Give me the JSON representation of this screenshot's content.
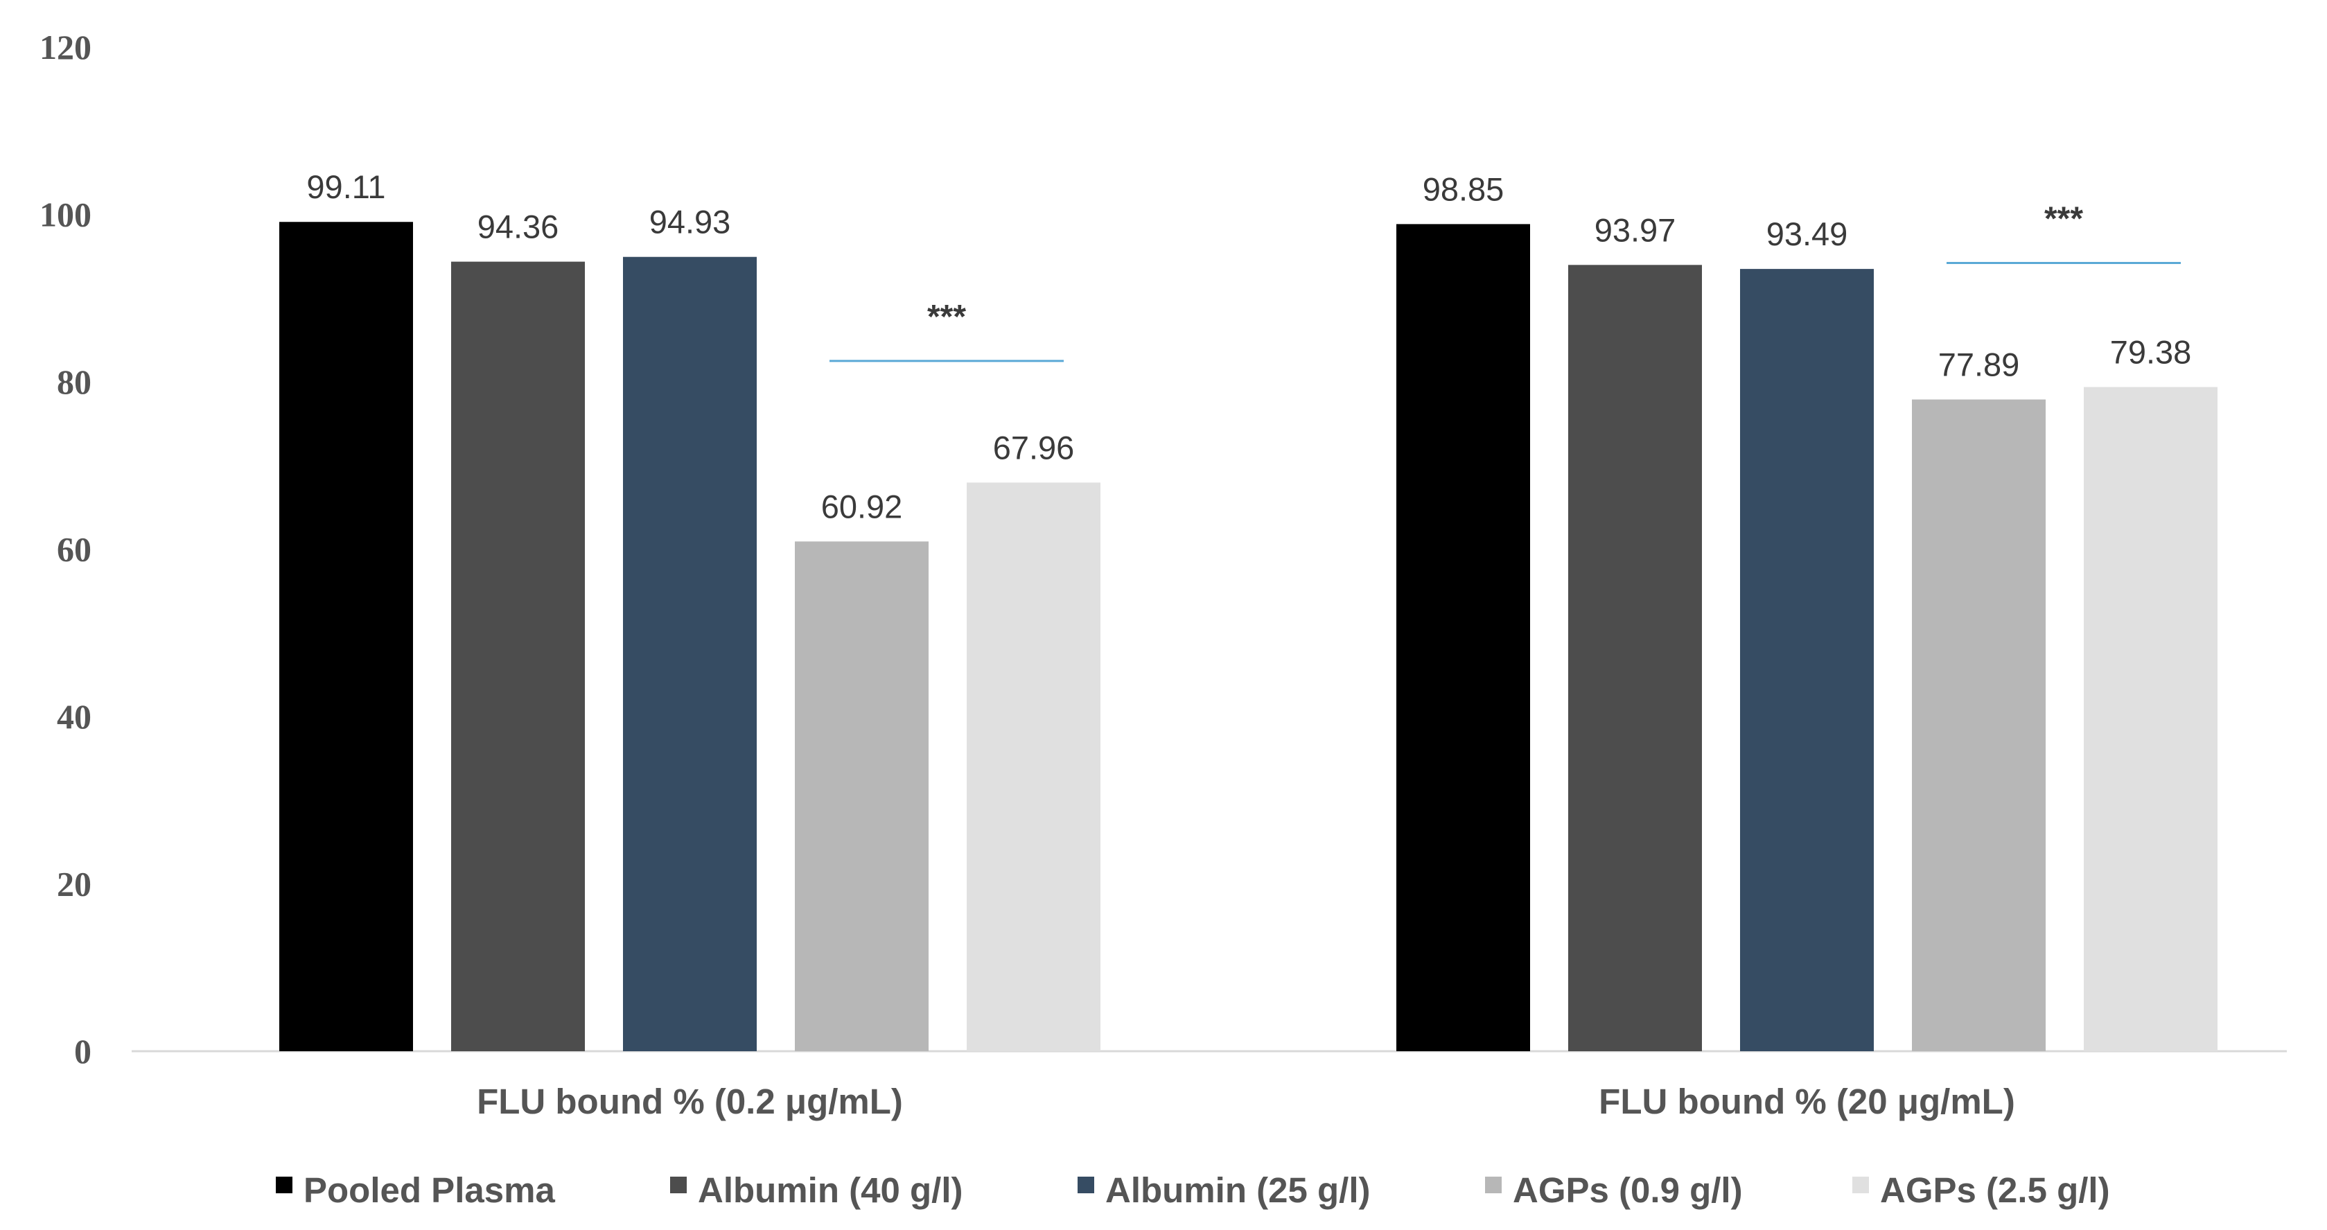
{
  "chart_data": {
    "type": "bar",
    "title": "",
    "xlabel": "",
    "ylabel": "",
    "ylim": [
      0,
      120
    ],
    "yticks": [
      0,
      20,
      40,
      60,
      80,
      100,
      120
    ],
    "ytick_labels": [
      "0",
      "20",
      "40",
      "60",
      "80",
      "100",
      "120"
    ],
    "categories": [
      "FLU bound % (0.2 μg/mL)",
      "FLU bound % (20 μg/mL)"
    ],
    "series": [
      {
        "name": "Pooled Plasma",
        "color": "#000000",
        "values": [
          99.11,
          98.85
        ],
        "labels": [
          "99.11",
          "98.85"
        ]
      },
      {
        "name": "Albumin (40 g/l)",
        "color": "#4d4d4d",
        "values": [
          94.36,
          93.97
        ],
        "labels": [
          "94.36",
          "93.97"
        ]
      },
      {
        "name": "Albumin (25 g/l)",
        "color": "#364c63",
        "values": [
          94.93,
          93.49
        ],
        "labels": [
          "94.93",
          "93.49"
        ]
      },
      {
        "name": "AGPs (0.9 g/l)",
        "color": "#b7b7b7",
        "values": [
          60.92,
          77.89
        ],
        "labels": [
          "60.92",
          "77.89"
        ]
      },
      {
        "name": "AGPs (2.5 g/l)",
        "color": "#e0e0e0",
        "values": [
          67.96,
          79.38
        ],
        "labels": [
          "67.96",
          "79.38"
        ]
      }
    ],
    "annotations": [
      {
        "text": "***",
        "category_index": 0,
        "between_series": [
          3,
          4
        ],
        "line_value": 82.5,
        "line_color": "#5aa9d6"
      },
      {
        "text": "***",
        "category_index": 1,
        "between_series": [
          3,
          4
        ],
        "line_value": 94.2,
        "line_color": "#5aa9d6"
      }
    ],
    "legend_position": "bottom",
    "grid": false,
    "axis_color": "#d9d9d9"
  }
}
